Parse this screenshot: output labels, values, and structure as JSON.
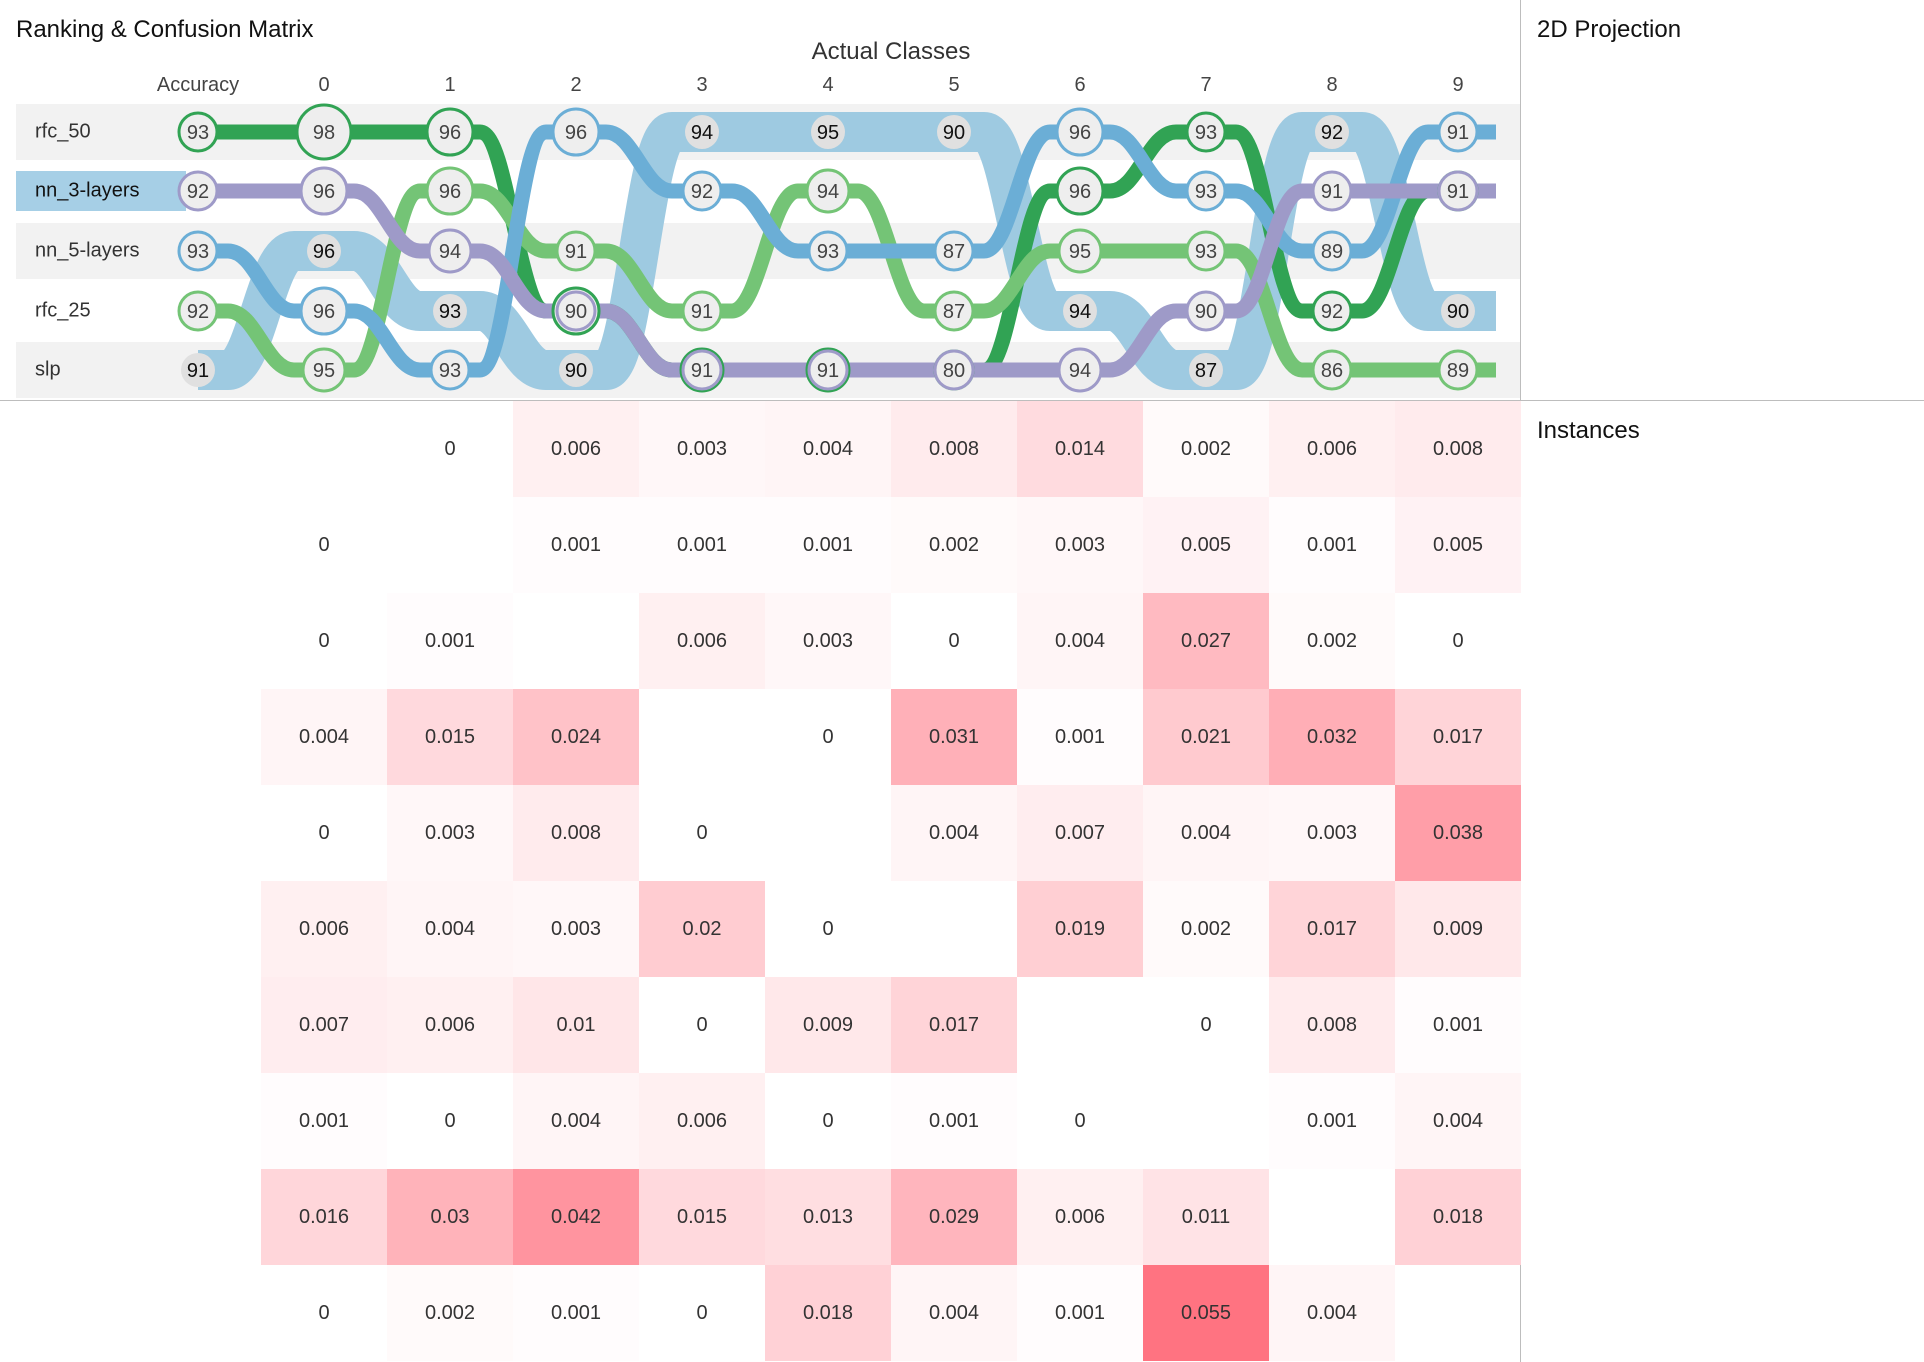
{
  "panels": {
    "ranking_title": "Ranking & Confusion Matrix",
    "projection_title": "2D Projection",
    "instances_title": "Instances"
  },
  "ranking": {
    "axis_title": "Actual Classes",
    "accuracy_label": "Accuracy",
    "classes": [
      "0",
      "1",
      "2",
      "3",
      "4",
      "5",
      "6",
      "7",
      "8",
      "9"
    ],
    "selected_model": "nn_3-layers",
    "models": [
      {
        "name": "rfc_50",
        "color": "#31a354",
        "scores": [
          93,
          98,
          96,
          96,
          94,
          95,
          90,
          96,
          93,
          92,
          91
        ],
        "ranks": [
          0,
          0,
          0,
          3,
          4,
          4,
          4,
          1,
          0,
          3,
          1
        ]
      },
      {
        "name": "nn_3-layers",
        "color": "#9e9ac8",
        "scores": [
          92,
          96,
          94,
          90,
          91,
          91,
          80,
          94,
          90,
          91,
          91
        ],
        "ranks": [
          1,
          1,
          2,
          3,
          4,
          4,
          4,
          4,
          3,
          1,
          1
        ]
      },
      {
        "name": "nn_5-layers",
        "color": "#6baed6",
        "scores": [
          93,
          96,
          93,
          96,
          92,
          93,
          87,
          96,
          93,
          89,
          91
        ],
        "ranks": [
          2,
          3,
          4,
          0,
          1,
          2,
          2,
          0,
          1,
          2,
          0
        ]
      },
      {
        "name": "rfc_25",
        "color": "#74c476",
        "scores": [
          92,
          95,
          96,
          91,
          91,
          94,
          87,
          95,
          93,
          86,
          89
        ],
        "ranks": [
          3,
          4,
          1,
          2,
          3,
          1,
          3,
          2,
          2,
          4,
          4
        ]
      },
      {
        "name": "slp",
        "color": "#9ecae1",
        "scores": [
          91,
          96,
          93,
          90,
          94,
          95,
          90,
          94,
          87,
          92,
          90
        ],
        "ranks": [
          4,
          2,
          3,
          4,
          0,
          0,
          0,
          3,
          4,
          0,
          3
        ]
      }
    ],
    "rank_order_labels": [
      "rfc_50",
      "nn_3-layers",
      "nn_5-layers",
      "rfc_25",
      "slp"
    ]
  },
  "matrix": {
    "columns": [
      "0",
      "1",
      "2",
      "3",
      "4",
      "5",
      "6",
      "7",
      "8",
      "9"
    ],
    "rows": [
      [
        null,
        0,
        0.006,
        0.003,
        0.004,
        0.008,
        0.014,
        0.002,
        0.006,
        0.008
      ],
      [
        0,
        null,
        0.001,
        0.001,
        0.001,
        0.002,
        0.003,
        0.005,
        0.001,
        0.005
      ],
      [
        0,
        0.001,
        null,
        0.006,
        0.003,
        0,
        0.004,
        0.027,
        0.002,
        0
      ],
      [
        0.004,
        0.015,
        0.024,
        null,
        0,
        0.031,
        0.001,
        0.021,
        0.032,
        0.017
      ],
      [
        0,
        0.003,
        0.008,
        0,
        null,
        0.004,
        0.007,
        0.004,
        0.003,
        0.038
      ],
      [
        0.006,
        0.004,
        0.003,
        0.02,
        0,
        null,
        0.019,
        0.002,
        0.017,
        0.009
      ],
      [
        0.007,
        0.006,
        0.01,
        0,
        0.009,
        0.017,
        null,
        0,
        0.008,
        0.001
      ],
      [
        0.001,
        0,
        0.004,
        0.006,
        0,
        0.001,
        0,
        null,
        0.001,
        0.004
      ],
      [
        0.016,
        0.03,
        0.042,
        0.015,
        0.013,
        0.029,
        0.006,
        0.011,
        null,
        0.018
      ],
      [
        0,
        0.002,
        0.001,
        0,
        0.018,
        0.004,
        0.001,
        0.055,
        0.004,
        null
      ]
    ],
    "max_value": 0.055,
    "heat_color": "#ff7381"
  }
}
